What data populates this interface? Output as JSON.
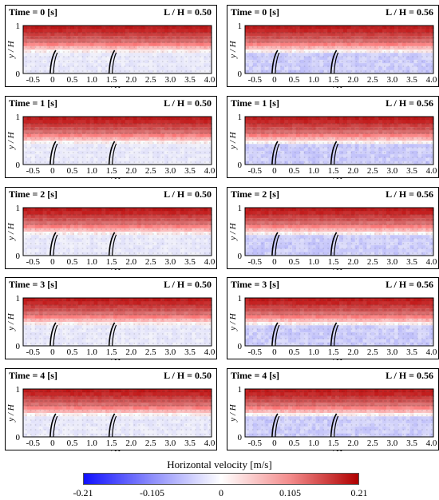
{
  "chart_data": {
    "type": "heatmap",
    "title": "",
    "colorbar": {
      "label": "Horizontal velocity [m/s]",
      "min": -0.21,
      "max": 0.21,
      "ticks": [
        "-0.21",
        "-0.105",
        "0",
        "0.105",
        "0.21"
      ],
      "colors": [
        "#1010ff",
        "#8e8efb",
        "#ffffff",
        "#f38c8c",
        "#b00000"
      ]
    },
    "xlabel": "x / H",
    "ylabel": "y / H",
    "x_ticks": [
      "-0.5",
      "0",
      "0.5",
      "1.0",
      "1.5",
      "2.0",
      "2.5",
      "3.0",
      "3.5",
      "4.0"
    ],
    "y_ticks": [
      "0",
      "1"
    ],
    "xlim": [
      -0.75,
      4.05
    ],
    "ylim": [
      0,
      1
    ],
    "vegetation_x": [
      0,
      1.5
    ],
    "columns": [
      "L / H = 0.50",
      "L / H = 0.56"
    ],
    "rows": [
      "Time = 0 [s]",
      "Time = 1 [s]",
      "Time = 2 [s]",
      "Time = 3 [s]",
      "Time = 4 [s]"
    ],
    "panels": [
      {
        "time_label": "Time = 0 [s]",
        "ratio_label": "L / H = 0.50"
      },
      {
        "time_label": "Time = 0 [s]",
        "ratio_label": "L / H = 0.56"
      },
      {
        "time_label": "Time = 1 [s]",
        "ratio_label": "L / H = 0.50"
      },
      {
        "time_label": "Time = 1 [s]",
        "ratio_label": "L / H = 0.56"
      },
      {
        "time_label": "Time = 2 [s]",
        "ratio_label": "L / H = 0.50"
      },
      {
        "time_label": "Time = 2 [s]",
        "ratio_label": "L / H = 0.56"
      },
      {
        "time_label": "Time = 3 [s]",
        "ratio_label": "L / H = 0.50"
      },
      {
        "time_label": "Time = 3 [s]",
        "ratio_label": "L / H = 0.56"
      },
      {
        "time_label": "Time = 4 [s]",
        "ratio_label": "L / H = 0.50"
      },
      {
        "time_label": "Time = 4 [s]",
        "ratio_label": "L / H = 0.56"
      }
    ]
  }
}
